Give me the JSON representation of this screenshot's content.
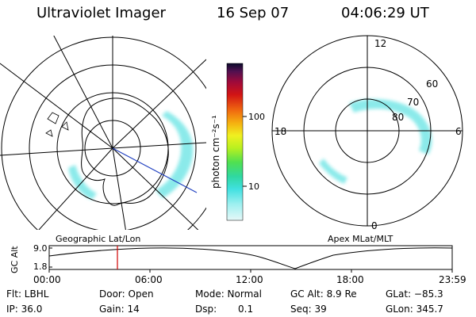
{
  "header": {
    "title": "Ultraviolet Imager",
    "date": "16 Sep 07",
    "time": "04:06:29 UT"
  },
  "colorbar": {
    "label": "photon cm⁻²s⁻¹",
    "ticks": [
      "100",
      "10"
    ],
    "colors": [
      "#0a0a2a",
      "#501050",
      "#a00a3a",
      "#d21414",
      "#f06a10",
      "#f5b010",
      "#f0f020",
      "#b8f020",
      "#50e050",
      "#30d8a0",
      "#40e0e0",
      "#a0f0f0",
      "#e6f8f8"
    ]
  },
  "left_panel": {
    "caption": "Geographic Lat/Lon",
    "aurora_color": "#7fe8e8"
  },
  "right_panel": {
    "caption": "Apex MLat/MLT",
    "mlt_labels": {
      "top": "12",
      "left": "18",
      "right": "6",
      "bottom": "0"
    },
    "lat_labels": [
      "60",
      "70",
      "80"
    ],
    "aurora_color": "#7fe8e8"
  },
  "altitude_plot": {
    "ylabel": "GC Alt",
    "ymax_label": "9.0",
    "ymin_label": "1.8",
    "x_ticks": [
      "00:00",
      "06:00",
      "12:00",
      "18:00",
      "23:59"
    ],
    "marker_color": "#d00000"
  },
  "info": {
    "filter": "Flt: LBHL",
    "door": "Door: Open",
    "mode": "Mode: Normal",
    "gc_alt": "GC Alt: 8.9 Re",
    "glat": "GLat: −85.3",
    "ip": "IP: 36.0",
    "gain": "Gain: 14",
    "dsp_label": "Dsp:",
    "dsp_value": "0.1",
    "seq": "Seq: 39",
    "glon": "GLon: 345.7"
  }
}
